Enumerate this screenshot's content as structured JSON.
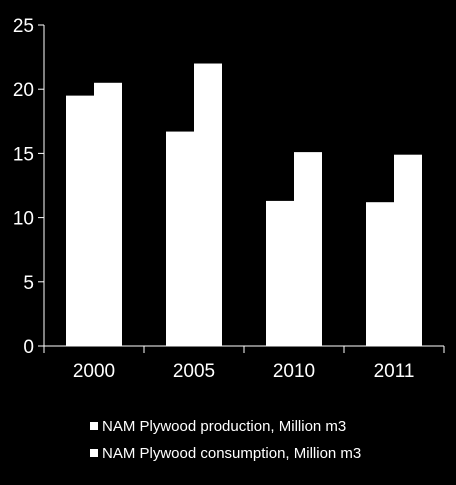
{
  "chart_data": {
    "type": "bar",
    "title": "",
    "xlabel": "",
    "ylabel": "",
    "categories": [
      "2000",
      "2005",
      "2010",
      "2011"
    ],
    "series": [
      {
        "name": "NAM Plywood production, Million m3",
        "values": [
          19.5,
          16.7,
          11.3,
          11.2
        ]
      },
      {
        "name": "NAM Plywood consumption, Million m3",
        "values": [
          20.5,
          22.0,
          15.1,
          14.9
        ]
      }
    ],
    "ylim": [
      0,
      25
    ],
    "yticks": [
      "0",
      "5",
      "10",
      "15",
      "20",
      "25"
    ],
    "grid": false,
    "legend_position": "bottom",
    "colors": {
      "background": "#000000",
      "bars": "#ffffff",
      "axis": "#ffffff",
      "text": "#ffffff"
    }
  }
}
